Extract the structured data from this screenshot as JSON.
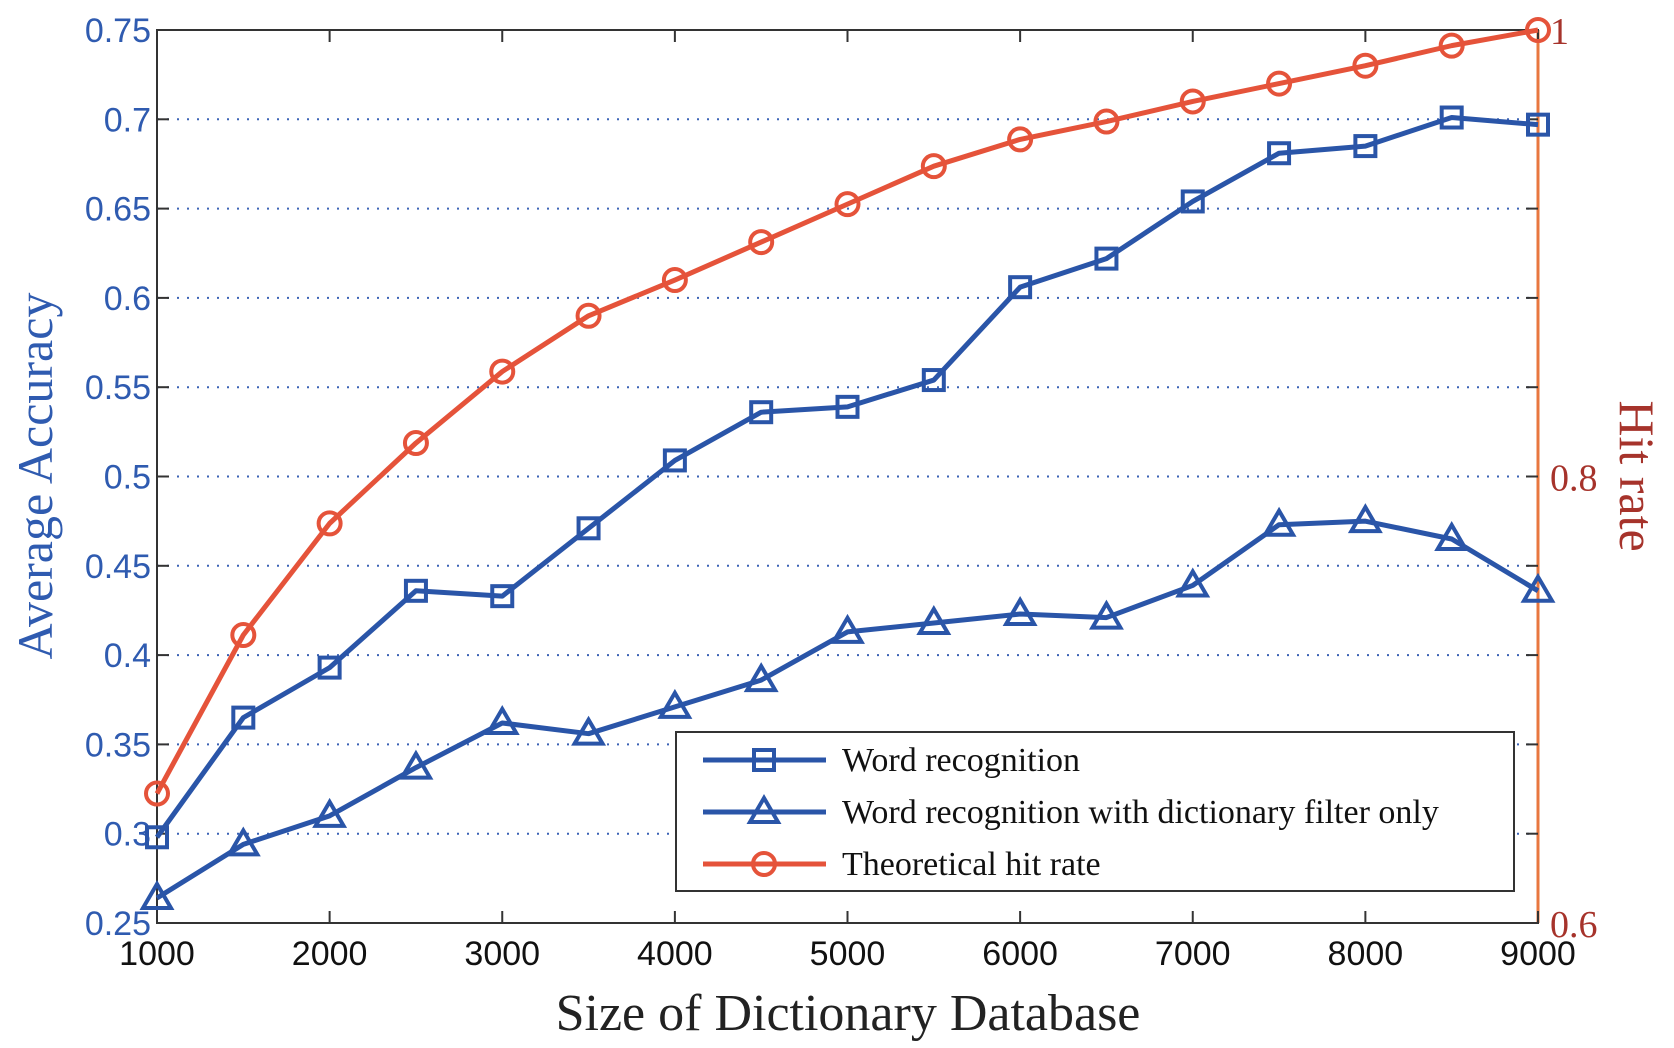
{
  "chart_data": {
    "type": "line",
    "title": "",
    "xlabel": "Size of Dictionary Database",
    "ylabel": "Average Accuracy",
    "y2label": "Hit rate",
    "x": [
      1000,
      1500,
      2000,
      2500,
      3000,
      3500,
      4000,
      4500,
      5000,
      5500,
      6000,
      6500,
      7000,
      7500,
      8000,
      8500,
      9000
    ],
    "xlim": [
      1000,
      9000
    ],
    "ylim": [
      0.25,
      0.75
    ],
    "y2lim": [
      0.6,
      1.0
    ],
    "xticks": [
      "1000",
      "2000",
      "3000",
      "4000",
      "5000",
      "6000",
      "7000",
      "8000",
      "9000"
    ],
    "yticks": [
      "0.25",
      "0.3",
      "0.35",
      "0.4",
      "0.45",
      "0.5",
      "0.55",
      "0.6",
      "0.65",
      "0.7",
      "0.75"
    ],
    "y2ticks": [
      "0.6",
      "0.8",
      "1"
    ],
    "grid": "horizontal dotted",
    "legend_position": "bottom-right",
    "series": [
      {
        "name": "Word recognition",
        "axis": "left",
        "marker": "square",
        "color": "#2a55a8",
        "values": [
          0.298,
          0.365,
          0.393,
          0.436,
          0.433,
          0.471,
          0.509,
          0.536,
          0.539,
          0.554,
          0.606,
          0.622,
          0.654,
          0.681,
          0.685,
          0.701,
          0.697
        ]
      },
      {
        "name": "Word recognition with dictionary filter only",
        "axis": "left",
        "marker": "triangle",
        "color": "#2a55a8",
        "values": [
          0.264,
          0.294,
          0.31,
          0.337,
          0.362,
          0.356,
          0.371,
          0.386,
          0.413,
          0.418,
          0.423,
          0.421,
          0.439,
          0.473,
          0.475,
          0.465,
          0.436
        ]
      },
      {
        "name": "Theoretical hit rate",
        "axis": "right",
        "marker": "circle",
        "color": "#e5533a",
        "values": [
          0.658,
          0.729,
          0.779,
          0.815,
          0.847,
          0.872,
          0.888,
          0.905,
          0.922,
          0.939,
          0.951,
          0.959,
          0.968,
          0.976,
          0.984,
          0.993,
          1.0
        ]
      }
    ]
  },
  "colors": {
    "left_axis": "#2f5bb0",
    "right_axis": "#a6332b",
    "right_spine": "#e8773f"
  }
}
